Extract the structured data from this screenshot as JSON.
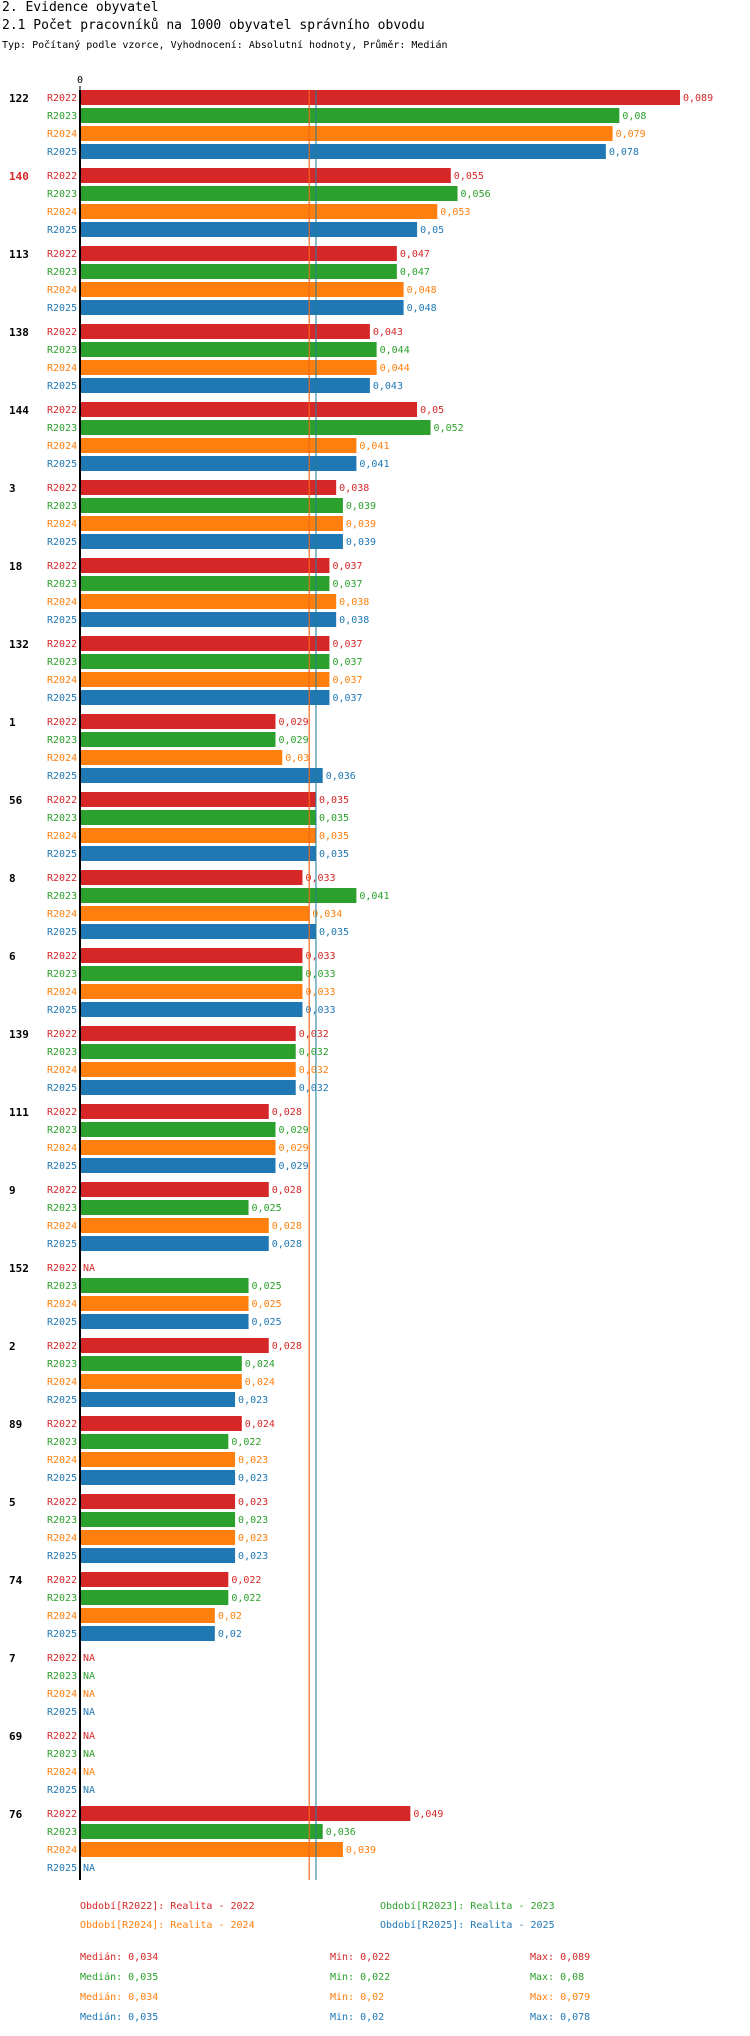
{
  "section_title": "2. Evidence obyvatel",
  "chart_title": "2.1 Počet pracovníků na 1000 obyvatel správního obvodu",
  "subtitle": "Typ: Počítaný podle vzorce, Vyhodnocení: Absolutní hodnoty, Průměr: Medián",
  "colors": {
    "R2022": "#d62728",
    "R2023": "#2ca02c",
    "R2024": "#ff7f0e",
    "R2025": "#1f77b4"
  },
  "chart_data": {
    "type": "bar",
    "orientation": "horizontal",
    "title": "2.1 Počet pracovníků na 1000 obyvatel správního obvodu",
    "axis_zero_label": "0",
    "xlim": [
      0,
      0.089
    ],
    "series_names": [
      "R2022",
      "R2023",
      "R2024",
      "R2025"
    ],
    "highlighted_group": "140",
    "groups": [
      {
        "label": "122",
        "values": [
          0.089,
          0.08,
          0.079,
          0.078
        ],
        "labels": [
          "0,089",
          "0,08",
          "0,079",
          "0,078"
        ]
      },
      {
        "label": "140",
        "values": [
          0.055,
          0.056,
          0.053,
          0.05
        ],
        "labels": [
          "0,055",
          "0,056",
          "0,053",
          "0,05"
        ]
      },
      {
        "label": "113",
        "values": [
          0.047,
          0.047,
          0.048,
          0.048
        ],
        "labels": [
          "0,047",
          "0,047",
          "0,048",
          "0,048"
        ]
      },
      {
        "label": "138",
        "values": [
          0.043,
          0.044,
          0.044,
          0.043
        ],
        "labels": [
          "0,043",
          "0,044",
          "0,044",
          "0,043"
        ]
      },
      {
        "label": "144",
        "values": [
          0.05,
          0.052,
          0.041,
          0.041
        ],
        "labels": [
          "0,05",
          "0,052",
          "0,041",
          "0,041"
        ]
      },
      {
        "label": "3",
        "values": [
          0.038,
          0.039,
          0.039,
          0.039
        ],
        "labels": [
          "0,038",
          "0,039",
          "0,039",
          "0,039"
        ]
      },
      {
        "label": "18",
        "values": [
          0.037,
          0.037,
          0.038,
          0.038
        ],
        "labels": [
          "0,037",
          "0,037",
          "0,038",
          "0,038"
        ]
      },
      {
        "label": "132",
        "values": [
          0.037,
          0.037,
          0.037,
          0.037
        ],
        "labels": [
          "0,037",
          "0,037",
          "0,037",
          "0,037"
        ]
      },
      {
        "label": "1",
        "values": [
          0.029,
          0.029,
          0.03,
          0.036
        ],
        "labels": [
          "0,029",
          "0,029",
          "0,03",
          "0,036"
        ]
      },
      {
        "label": "56",
        "values": [
          0.035,
          0.035,
          0.035,
          0.035
        ],
        "labels": [
          "0,035",
          "0,035",
          "0,035",
          "0,035"
        ]
      },
      {
        "label": "8",
        "values": [
          0.033,
          0.041,
          0.034,
          0.035
        ],
        "labels": [
          "0,033",
          "0,041",
          "0,034",
          "0,035"
        ]
      },
      {
        "label": "6",
        "values": [
          0.033,
          0.033,
          0.033,
          0.033
        ],
        "labels": [
          "0,033",
          "0,033",
          "0,033",
          "0,033"
        ]
      },
      {
        "label": "139",
        "values": [
          0.032,
          0.032,
          0.032,
          0.032
        ],
        "labels": [
          "0,032",
          "0,032",
          "0,032",
          "0,032"
        ]
      },
      {
        "label": "111",
        "values": [
          0.028,
          0.029,
          0.029,
          0.029
        ],
        "labels": [
          "0,028",
          "0,029",
          "0,029",
          "0,029"
        ]
      },
      {
        "label": "9",
        "values": [
          0.028,
          0.025,
          0.028,
          0.028
        ],
        "labels": [
          "0,028",
          "0,025",
          "0,028",
          "0,028"
        ]
      },
      {
        "label": "152",
        "values": [
          null,
          0.025,
          0.025,
          0.025
        ],
        "labels": [
          "NA",
          "0,025",
          "0,025",
          "0,025"
        ]
      },
      {
        "label": "2",
        "values": [
          0.028,
          0.024,
          0.024,
          0.023
        ],
        "labels": [
          "0,028",
          "0,024",
          "0,024",
          "0,023"
        ]
      },
      {
        "label": "89",
        "values": [
          0.024,
          0.022,
          0.023,
          0.023
        ],
        "labels": [
          "0,024",
          "0,022",
          "0,023",
          "0,023"
        ]
      },
      {
        "label": "5",
        "values": [
          0.023,
          0.023,
          0.023,
          0.023
        ],
        "labels": [
          "0,023",
          "0,023",
          "0,023",
          "0,023"
        ]
      },
      {
        "label": "74",
        "values": [
          0.022,
          0.022,
          0.02,
          0.02
        ],
        "labels": [
          "0,022",
          "0,022",
          "0,02",
          "0,02"
        ]
      },
      {
        "label": "7",
        "values": [
          null,
          null,
          null,
          null
        ],
        "labels": [
          "NA",
          "NA",
          "NA",
          "NA"
        ]
      },
      {
        "label": "69",
        "values": [
          null,
          null,
          null,
          null
        ],
        "labels": [
          "NA",
          "NA",
          "NA",
          "NA"
        ]
      },
      {
        "label": "76",
        "values": [
          0.049,
          0.036,
          0.039,
          null
        ],
        "labels": [
          "0,049",
          "0,036",
          "0,039",
          "NA"
        ]
      }
    ],
    "medians": [
      0.034,
      0.035,
      0.034,
      0.035
    ]
  },
  "legend": {
    "periods": [
      {
        "text": "Období[R2022]: Realita - 2022",
        "color": "#d62728"
      },
      {
        "text": "Období[R2023]: Realita - 2023",
        "color": "#2ca02c"
      },
      {
        "text": "Období[R2024]: Realita - 2024",
        "color": "#ff7f0e"
      },
      {
        "text": "Období[R2025]: Realita - 2025",
        "color": "#1f77b4"
      }
    ],
    "stats": [
      {
        "median": "Medián: 0,034",
        "min": "Min: 0,022",
        "max": "Max: 0,089",
        "color": "#d62728"
      },
      {
        "median": "Medián: 0,035",
        "min": "Min: 0,022",
        "max": "Max: 0,08",
        "color": "#2ca02c"
      },
      {
        "median": "Medián: 0,034",
        "min": "Min: 0,02",
        "max": "Max: 0,079",
        "color": "#ff7f0e"
      },
      {
        "median": "Medián: 0,035",
        "min": "Min: 0,02",
        "max": "Max: 0,078",
        "color": "#1f77b4"
      }
    ]
  }
}
